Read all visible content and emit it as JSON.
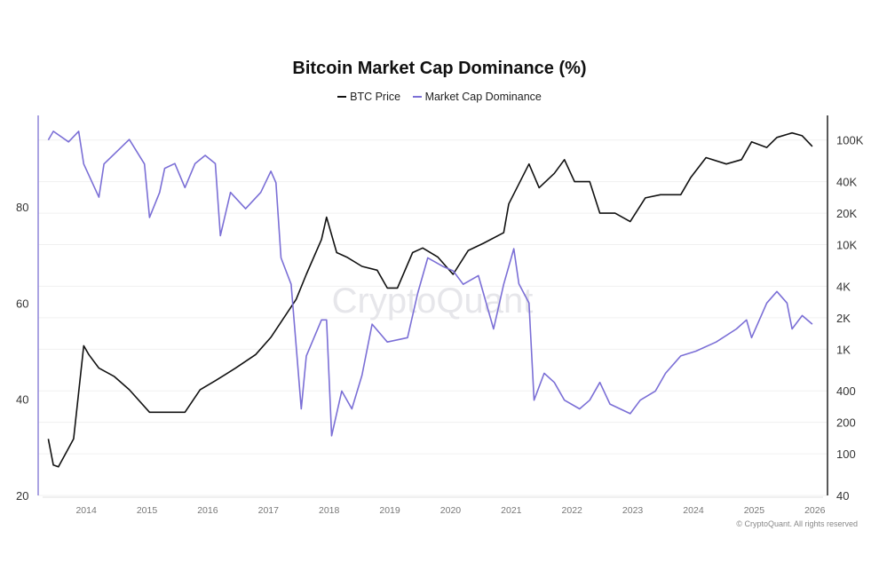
{
  "chart_data": {
    "type": "line",
    "title": "Bitcoin Market Cap Dominance (%)",
    "legend_position": "top-center",
    "grid": true,
    "watermark": "CryptoQuant",
    "footer": "© CryptoQuant. All rights reserved",
    "x_ticks": [
      "2014",
      "2015",
      "2016",
      "2017",
      "2018",
      "2019",
      "2020",
      "2021",
      "2022",
      "2023",
      "2024",
      "2025",
      "2026"
    ],
    "xlim": [
      "2013-03",
      "2026-03"
    ],
    "y_left": {
      "ticks": [
        20,
        40,
        60,
        80
      ],
      "ylim": [
        20,
        99
      ],
      "scale": "linear"
    },
    "y_right": {
      "ticks": [
        "40",
        "100",
        "200",
        "400",
        "1K",
        "2K",
        "4K",
        "10K",
        "20K",
        "40K",
        "100K"
      ],
      "tick_values": [
        40,
        100,
        200,
        400,
        1000,
        2000,
        4000,
        10000,
        20000,
        40000,
        100000
      ],
      "ylim": [
        40,
        172000
      ],
      "scale": "log"
    },
    "series": [
      {
        "name": "BTC Price",
        "axis": "right",
        "color": "#111111",
        "x": [
          "2013-05",
          "2013-06",
          "2013-07",
          "2013-10",
          "2013-12",
          "2014-01",
          "2014-03",
          "2014-06",
          "2014-09",
          "2015-01",
          "2015-04",
          "2015-08",
          "2015-11",
          "2016-02",
          "2016-06",
          "2016-10",
          "2017-01",
          "2017-04",
          "2017-06",
          "2017-08",
          "2017-11",
          "2017-12",
          "2018-02",
          "2018-04",
          "2018-07",
          "2018-10",
          "2018-12",
          "2019-02",
          "2019-05",
          "2019-07",
          "2019-10",
          "2020-01",
          "2020-04",
          "2020-07",
          "2020-11",
          "2020-12",
          "2021-04",
          "2021-06",
          "2021-09",
          "2021-11",
          "2022-01",
          "2022-04",
          "2022-06",
          "2022-09",
          "2022-12",
          "2023-03",
          "2023-06",
          "2023-10",
          "2023-12",
          "2024-03",
          "2024-07",
          "2024-10",
          "2024-12",
          "2025-03",
          "2025-05",
          "2025-08",
          "2025-10",
          "2025-12"
        ],
        "values": [
          139,
          78,
          75,
          139,
          1080,
          890,
          660,
          550,
          410,
          250,
          250,
          250,
          410,
          500,
          660,
          890,
          1300,
          2150,
          3000,
          5200,
          11200,
          18300,
          8400,
          7600,
          6200,
          5700,
          3850,
          3850,
          8400,
          9300,
          7600,
          5200,
          8800,
          10300,
          13000,
          24500,
          59000,
          35000,
          48000,
          65000,
          40000,
          40000,
          20000,
          20000,
          16600,
          28000,
          30000,
          30000,
          44000,
          68000,
          59000,
          65000,
          96000,
          85000,
          106000,
          117000,
          110000,
          87000
        ]
      },
      {
        "name": "Market Cap Dominance",
        "axis": "left",
        "color": "#7b6fd6",
        "x": [
          "2013-05",
          "2013-06",
          "2013-09",
          "2013-11",
          "2013-12",
          "2014-03",
          "2014-04",
          "2014-09",
          "2014-12",
          "2015-01",
          "2015-03",
          "2015-04",
          "2015-06",
          "2015-08",
          "2015-10",
          "2015-12",
          "2016-02",
          "2016-03",
          "2016-05",
          "2016-08",
          "2016-11",
          "2017-01",
          "2017-02",
          "2017-03",
          "2017-05",
          "2017-06",
          "2017-07",
          "2017-08",
          "2017-11",
          "2017-12",
          "2018-01",
          "2018-03",
          "2018-05",
          "2018-07",
          "2018-09",
          "2018-12",
          "2019-04",
          "2019-06",
          "2019-08",
          "2019-11",
          "2020-01",
          "2020-03",
          "2020-06",
          "2020-09",
          "2020-11",
          "2021-01",
          "2021-02",
          "2021-04",
          "2021-05",
          "2021-07",
          "2021-09",
          "2021-11",
          "2022-02",
          "2022-04",
          "2022-06",
          "2022-08",
          "2022-12",
          "2023-02",
          "2023-05",
          "2023-07",
          "2023-10",
          "2024-01",
          "2024-05",
          "2024-09",
          "2024-11",
          "2024-12",
          "2025-03",
          "2025-05",
          "2025-07",
          "2025-08",
          "2025-10",
          "2025-12"
        ],
        "values": [
          93.9,
          95.7,
          93.5,
          95.7,
          88.9,
          82,
          88.9,
          94,
          88.9,
          77.8,
          83,
          88,
          89,
          84,
          89,
          90.7,
          89,
          74,
          83,
          79.6,
          83,
          87.4,
          85,
          69.4,
          63.9,
          51,
          38,
          49,
          56.5,
          56.5,
          32.4,
          41.7,
          38,
          45,
          55.6,
          51.9,
          52.8,
          62,
          69.4,
          67.6,
          66.7,
          63.9,
          65.7,
          54.6,
          63.9,
          71.3,
          64,
          60,
          39.8,
          45.4,
          43.5,
          39.8,
          38,
          39.8,
          43.5,
          39,
          37,
          39.8,
          41.7,
          45.4,
          49,
          50,
          51.9,
          54.6,
          56.5,
          52.8,
          60,
          62.4,
          60,
          54.6,
          57.4,
          55.6
        ]
      }
    ]
  }
}
